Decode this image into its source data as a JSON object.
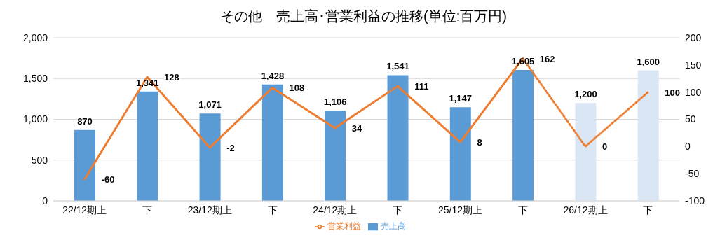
{
  "chart_data": {
    "type": "bar",
    "title": "その他　売上高･営業利益の推移(単位:百万円)",
    "categories": [
      "22/12期上",
      "下",
      "23/12期上",
      "下",
      "24/12期上",
      "下",
      "25/12期上",
      "下",
      "26/12期上",
      "下"
    ],
    "series": [
      {
        "name": "売上高",
        "color": "#5b9bd5",
        "colors": [
          "#5b9bd5",
          "#5b9bd5",
          "#5b9bd5",
          "#5b9bd5",
          "#5b9bd5",
          "#5b9bd5",
          "#5b9bd5",
          "#5b9bd5",
          "#dae6f3",
          "#dae6f3"
        ],
        "values": [
          870,
          1341,
          1071,
          1428,
          1106,
          1541,
          1147,
          1605,
          1200,
          1600
        ],
        "value_labels": [
          "870",
          "1,341",
          "1,071",
          "1,428",
          "1,106",
          "1,541",
          "1,147",
          "1,605",
          "1,200",
          "1,600"
        ]
      },
      {
        "name": "営業利益",
        "type": "line",
        "axis": "y2",
        "color": "#ed7d31",
        "line_style": "solid",
        "values": [
          -60,
          128,
          -2,
          108,
          34,
          111,
          8,
          162,
          null,
          null
        ],
        "value_labels": [
          "-60",
          "128",
          "-2",
          "108",
          "34",
          "111",
          "8",
          "162",
          null,
          null
        ]
      },
      {
        "type": "line",
        "axis": "y2",
        "color": "#ed7d31",
        "line_style": "dotted",
        "values": [
          null,
          null,
          null,
          null,
          null,
          null,
          null,
          162,
          0,
          100
        ],
        "value_labels": [
          null,
          null,
          null,
          null,
          null,
          null,
          null,
          null,
          "0",
          "100"
        ]
      }
    ],
    "ylim": [
      0,
      2000
    ],
    "yticks": [
      {
        "value": 0,
        "label": "0"
      },
      {
        "value": 500,
        "label": "500"
      },
      {
        "value": 1000,
        "label": "1,000"
      },
      {
        "value": 1500,
        "label": "1,500"
      },
      {
        "value": 2000,
        "label": "2,000"
      }
    ],
    "y2lim": [
      -100,
      200
    ],
    "y2ticks": [
      -100,
      -50,
      0,
      50,
      100,
      150,
      200
    ],
    "grid": "y",
    "legend": "bottom",
    "marker": "none"
  }
}
